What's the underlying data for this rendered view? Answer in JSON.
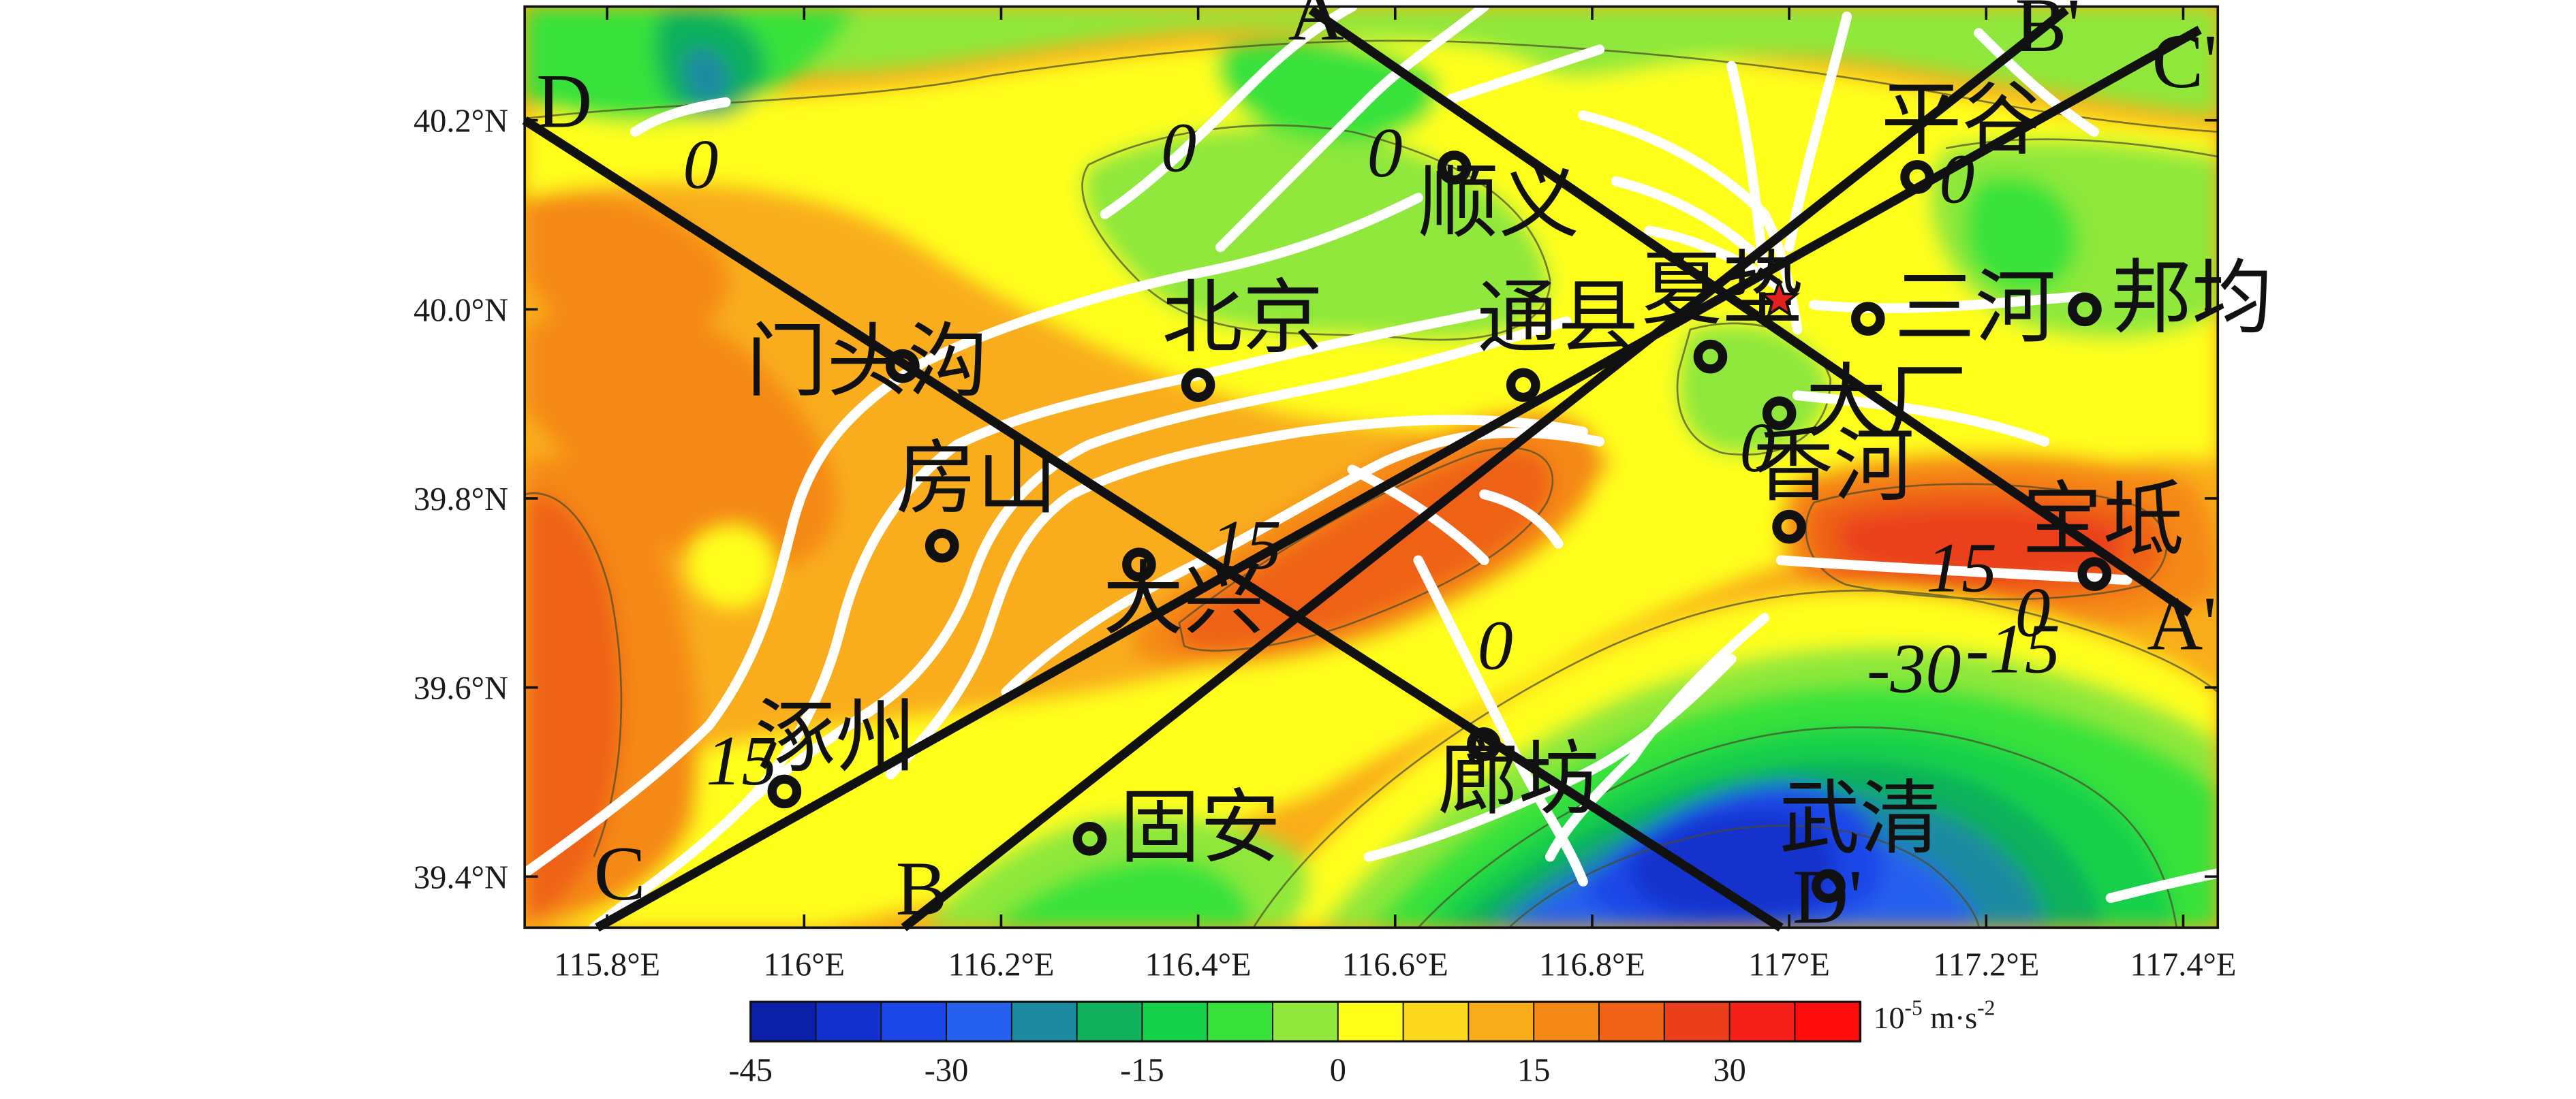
{
  "map": {
    "lat_ticks": [
      "40.2°N",
      "40.0°N",
      "39.8°N",
      "39.6°N",
      "39.4°N"
    ],
    "lon_ticks": [
      "115.8°E",
      "116°E",
      "116.2°E",
      "116.4°E",
      "116.6°E",
      "116.8°E",
      "117°E",
      "117.2°E",
      "117.4°E"
    ],
    "cities": [
      {
        "name": "平谷",
        "lon": 117.13,
        "lat": 40.14
      },
      {
        "name": "顺义",
        "lon": 116.66,
        "lat": 40.15
      },
      {
        "name": "门头沟",
        "lon": 116.1,
        "lat": 39.94
      },
      {
        "name": "北京",
        "lon": 116.4,
        "lat": 39.92
      },
      {
        "name": "通县",
        "lon": 116.73,
        "lat": 39.92
      },
      {
        "name": "夏垫",
        "lon": 116.92,
        "lat": 39.95
      },
      {
        "name": "三河",
        "lon": 117.08,
        "lat": 39.99
      },
      {
        "name": "邦均",
        "lon": 117.3,
        "lat": 40.0
      },
      {
        "name": "大厂",
        "lon": 116.99,
        "lat": 39.89
      },
      {
        "name": "房山",
        "lon": 116.14,
        "lat": 39.75
      },
      {
        "name": "大兴",
        "lon": 116.34,
        "lat": 39.73
      },
      {
        "name": "香河",
        "lon": 117.0,
        "lat": 39.77
      },
      {
        "name": "宝坻",
        "lon": 117.31,
        "lat": 39.72
      },
      {
        "name": "涿州",
        "lon": 115.98,
        "lat": 39.49
      },
      {
        "name": "廊坊",
        "lon": 116.69,
        "lat": 39.54
      },
      {
        "name": "固安",
        "lon": 116.29,
        "lat": 39.44
      },
      {
        "name": "武清",
        "lon": 117.04,
        "lat": 39.39
      }
    ],
    "epicenter": {
      "lon": 116.99,
      "lat": 40.01
    },
    "profile_labels": [
      "A",
      "A'",
      "B",
      "B'",
      "C",
      "C'",
      "D",
      "D'"
    ],
    "contour_labels": [
      "0",
      "0",
      "0",
      "0",
      "0",
      "0",
      "0",
      "15",
      "15",
      "15",
      "-15",
      "-30"
    ]
  },
  "colorbar": {
    "min": -45,
    "max": 40,
    "step": 5,
    "tick_labels": [
      "-45",
      "-30",
      "-15",
      "0",
      "15",
      "30"
    ],
    "unit_prefix": "10",
    "unit_exp1": "-5",
    "unit_mid": " m·s",
    "unit_exp2": "-2",
    "colors": [
      "#0b1fa8",
      "#1230cc",
      "#1c47e8",
      "#2561ee",
      "#1e8aa2",
      "#10b05c",
      "#16d14a",
      "#39e23a",
      "#8fe83a",
      "#ffff1a",
      "#fbd81b",
      "#f9ad1a",
      "#f58918",
      "#ef6218",
      "#ea3f1a",
      "#f52017",
      "#ff0c0c"
    ]
  },
  "colors": {
    "fault": "#ffffff",
    "profile": "#111111",
    "epicenter_fill": "#e32020"
  }
}
